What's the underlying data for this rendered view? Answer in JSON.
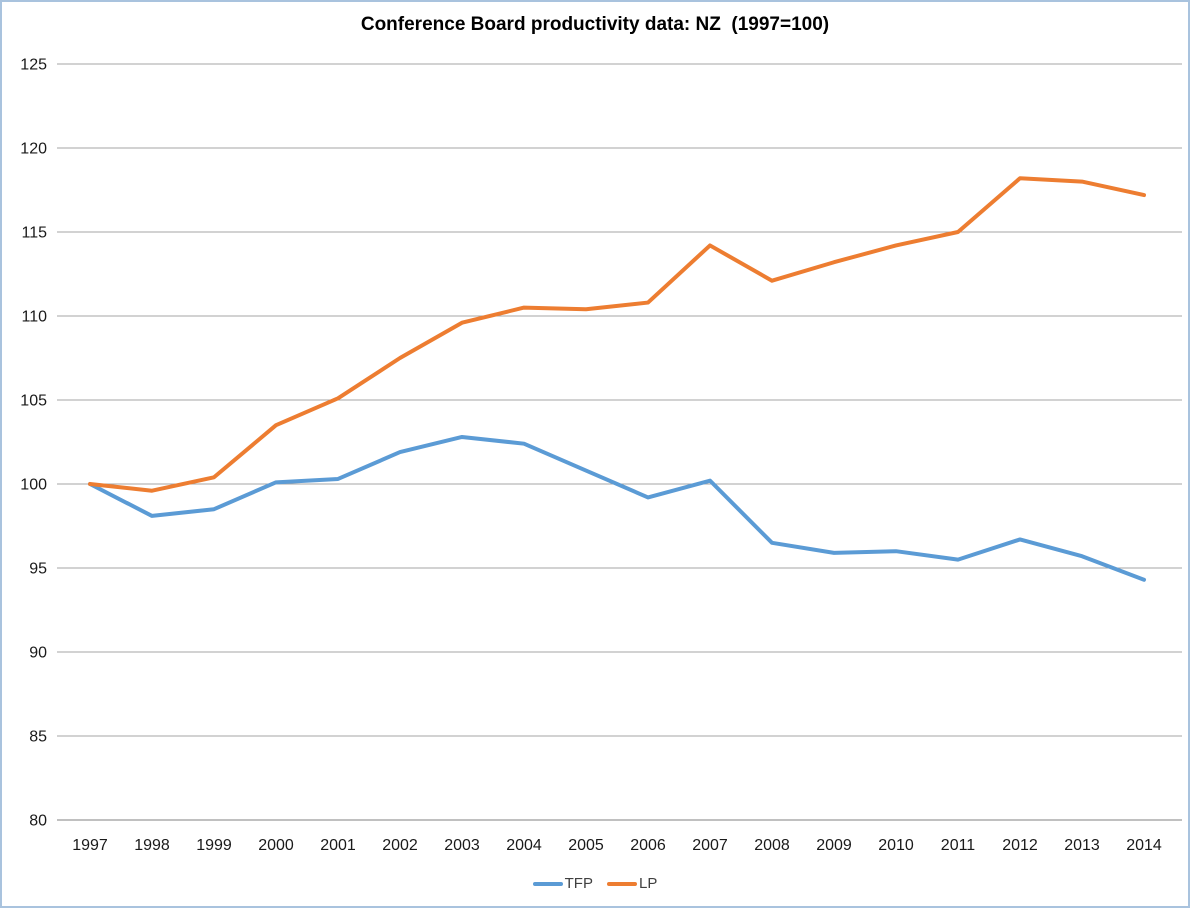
{
  "chart_data": {
    "type": "line",
    "title": "Conference Board productivity data: NZ  (1997=100)",
    "x": [
      1997,
      1998,
      1999,
      2000,
      2001,
      2002,
      2003,
      2004,
      2005,
      2006,
      2007,
      2008,
      2009,
      2010,
      2011,
      2012,
      2013,
      2014
    ],
    "series": [
      {
        "name": "TFP",
        "color": "#5B9BD5",
        "values": [
          100.0,
          98.1,
          98.5,
          100.1,
          100.3,
          101.9,
          102.8,
          102.4,
          100.8,
          99.2,
          100.2,
          96.5,
          95.9,
          96.0,
          95.5,
          96.7,
          95.7,
          94.3
        ]
      },
      {
        "name": "LP",
        "color": "#ED7D31",
        "values": [
          100.0,
          99.6,
          100.4,
          103.5,
          105.1,
          107.5,
          109.6,
          110.5,
          110.4,
          110.8,
          114.2,
          112.1,
          113.2,
          114.2,
          115.0,
          118.2,
          118.0,
          117.2
        ]
      }
    ],
    "ylim": [
      80,
      125
    ],
    "ytick_step": 5,
    "yticks": [
      80,
      85,
      90,
      95,
      100,
      105,
      110,
      115,
      120,
      125
    ],
    "grid": true,
    "legend_position": "bottom",
    "xlabel": "",
    "ylabel": ""
  },
  "colors": {
    "grid": "#A6A6A6",
    "axis_line": "#808080",
    "tick_text": "#1A1A1A",
    "frame_border": "#A9C3DE",
    "title_text": "#000000"
  }
}
